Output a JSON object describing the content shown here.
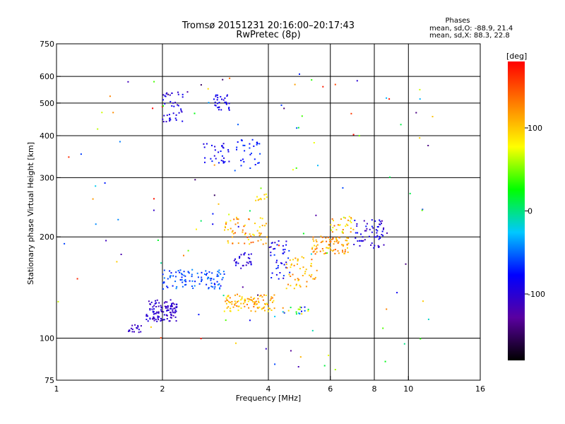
{
  "chart_data": {
    "type": "scatter",
    "title": "Tromsø 20151231 20:16:00–20:17:43",
    "subtitle": "RwPretec (8p)",
    "xlabel": "Frequency [MHz]",
    "ylabel": "Stationary phase Virtual Height [km]",
    "x_scale": "log",
    "y_scale": "log",
    "xlim": [
      1,
      16
    ],
    "ylim": [
      75,
      750
    ],
    "x_ticks": [
      {
        "value": 1,
        "label": "1"
      },
      {
        "value": 2,
        "label": "2"
      },
      {
        "value": 4,
        "label": "4"
      },
      {
        "value": 6,
        "label": "6"
      },
      {
        "value": 8,
        "label": "8"
      },
      {
        "value": 10,
        "label": "10"
      },
      {
        "value": 16,
        "label": "16"
      }
    ],
    "x_grid": [
      2,
      4,
      6,
      8,
      10
    ],
    "y_ticks": [
      {
        "value": 75,
        "label": "75"
      },
      {
        "value": 100,
        "label": "100"
      },
      {
        "value": 200,
        "label": "200"
      },
      {
        "value": 300,
        "label": "300"
      },
      {
        "value": 400,
        "label": "400"
      },
      {
        "value": 500,
        "label": "500"
      },
      {
        "value": 600,
        "label": "600"
      },
      {
        "value": 750,
        "label": "750"
      }
    ],
    "y_grid": [
      100,
      200,
      300,
      400,
      500,
      600
    ],
    "grid": true,
    "legend_title": "Phases",
    "legend_lines": [
      "mean, sd,O: -88.9, 21.4",
      "mean, sd,X: 88.3, 22.8"
    ],
    "legend_position": "top-right",
    "colorbar": {
      "label": "[deg]",
      "min": -180,
      "max": 180,
      "ticks": [
        {
          "value": 100,
          "label": "100"
        },
        {
          "value": 0,
          "label": "0"
        },
        {
          "value": -100,
          "label": "-100"
        }
      ],
      "colormap": [
        "#000000",
        "#5a00a0",
        "#0000ff",
        "#00c8ff",
        "#00ff00",
        "#ffff00",
        "#ff8000",
        "#ff0000"
      ]
    },
    "clusters": [
      {
        "f": [
          1.8,
          2.2
        ],
        "h": [
          112,
          130
        ],
        "phase": [
          -120,
          -90
        ],
        "n": 120
      },
      {
        "f": [
          1.6,
          1.75
        ],
        "h": [
          104,
          110
        ],
        "phase": [
          -115,
          -95
        ],
        "n": 18
      },
      {
        "f": [
          2.0,
          3.0
        ],
        "h": [
          140,
          160
        ],
        "phase": [
          -80,
          -40
        ],
        "n": 100
      },
      {
        "f": [
          3.0,
          4.2
        ],
        "h": [
          120,
          135
        ],
        "phase": [
          80,
          140
        ],
        "n": 100
      },
      {
        "f": [
          3.2,
          3.6
        ],
        "h": [
          160,
          180
        ],
        "phase": [
          -110,
          -80
        ],
        "n": 30
      },
      {
        "f": [
          3.0,
          4.0
        ],
        "h": [
          190,
          230
        ],
        "phase": [
          80,
          150
        ],
        "n": 60
      },
      {
        "f": [
          4.0,
          4.6
        ],
        "h": [
          150,
          195
        ],
        "phase": [
          -110,
          -60
        ],
        "n": 40
      },
      {
        "f": [
          4.5,
          5.5
        ],
        "h": [
          140,
          175
        ],
        "phase": [
          80,
          140
        ],
        "n": 50
      },
      {
        "f": [
          4.3,
          5.2
        ],
        "h": [
          118,
          124
        ],
        "phase": [
          -90,
          130
        ],
        "n": 20
      },
      {
        "f": [
          5.3,
          6.8
        ],
        "h": [
          178,
          200
        ],
        "phase": [
          90,
          150
        ],
        "n": 80
      },
      {
        "f": [
          6.0,
          7.0
        ],
        "h": [
          205,
          230
        ],
        "phase": [
          60,
          140
        ],
        "n": 30
      },
      {
        "f": [
          7.0,
          8.7
        ],
        "h": [
          185,
          225
        ],
        "phase": [
          -120,
          -70
        ],
        "n": 60
      },
      {
        "f": [
          2.0,
          2.3
        ],
        "h": [
          440,
          540
        ],
        "phase": [
          -110,
          -80
        ],
        "n": 40
      },
      {
        "f": [
          2.6,
          3.1
        ],
        "h": [
          330,
          380
        ],
        "phase": [
          -100,
          -70
        ],
        "n": 30
      },
      {
        "f": [
          2.8,
          3.1
        ],
        "h": [
          470,
          530
        ],
        "phase": [
          -100,
          -80
        ],
        "n": 30
      },
      {
        "f": [
          3.2,
          3.8
        ],
        "h": [
          320,
          390
        ],
        "phase": [
          -80,
          -60
        ],
        "n": 30
      },
      {
        "f": [
          3.5,
          4.0
        ],
        "h": [
          250,
          270
        ],
        "phase": [
          80,
          120
        ],
        "n": 10
      },
      {
        "f": [
          1.0,
          12.0
        ],
        "h": [
          80,
          620
        ],
        "phase": [
          -150,
          180
        ],
        "n": 120
      }
    ]
  }
}
